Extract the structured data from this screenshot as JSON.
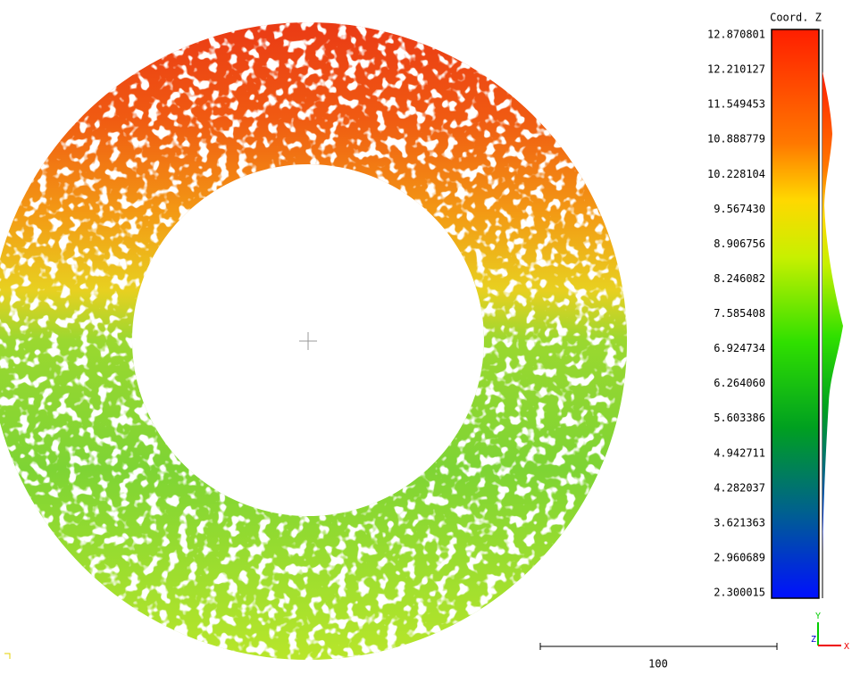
{
  "colorbar": {
    "title": "Coord. Z",
    "ticks": [
      "12.870801",
      "12.210127",
      "11.549453",
      "10.888779",
      "10.228104",
      "9.567430",
      "8.906756",
      "8.246082",
      "7.585408",
      "6.924734",
      "6.264060",
      "5.603386",
      "4.942711",
      "4.282037",
      "3.621363",
      "2.960689",
      "2.300015"
    ]
  },
  "scale_bar": {
    "label": "100"
  },
  "axes": {
    "y": "Y",
    "z": "Z",
    "x": "X"
  }
}
